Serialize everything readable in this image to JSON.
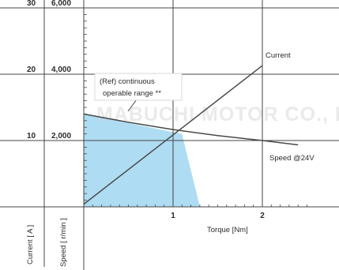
{
  "chart_data": {
    "type": "line",
    "title": "",
    "xlabel": "Torque [Nm]",
    "ylabel_current": "Current [ A ]",
    "ylabel_speed": "Speed [ r/min ]",
    "xlim": [
      0,
      2.6
    ],
    "x_ticks": [
      "1",
      "2"
    ],
    "x_tick_values": [
      1,
      2
    ],
    "current_axis": {
      "ylim": [
        0,
        30
      ],
      "ticks": [
        "10",
        "20",
        "30"
      ],
      "tick_values": [
        10,
        20,
        30
      ]
    },
    "speed_axis": {
      "ylim": [
        0,
        6000
      ],
      "ticks": [
        "2,000",
        "4,000",
        "6,000"
      ],
      "tick_values": [
        2000,
        4000,
        6000
      ]
    },
    "series": [
      {
        "name": "Current",
        "axis": "current",
        "x": [
          0,
          2
        ],
        "y": [
          0.4,
          21.3
        ]
      },
      {
        "name": "Speed @24V",
        "axis": "speed",
        "x": [
          0,
          0.5,
          1,
          1.5,
          2,
          2.4
        ],
        "y": [
          2800,
          2550,
          2330,
          2150,
          2000,
          1870
        ]
      }
    ],
    "region": {
      "label_lines": [
        "(Ref) continuous",
        "operable range **"
      ],
      "x": [
        0,
        0,
        1.1,
        1.3
      ],
      "y": [
        0,
        2800,
        2200,
        0
      ]
    },
    "grid": true,
    "watermark": "MABUCHI MOTOR CO., LTD",
    "colors": {
      "line": "#4a4a4a",
      "region": "#aedcf2",
      "grid": "#444444",
      "text": "#2b2b2b"
    }
  }
}
